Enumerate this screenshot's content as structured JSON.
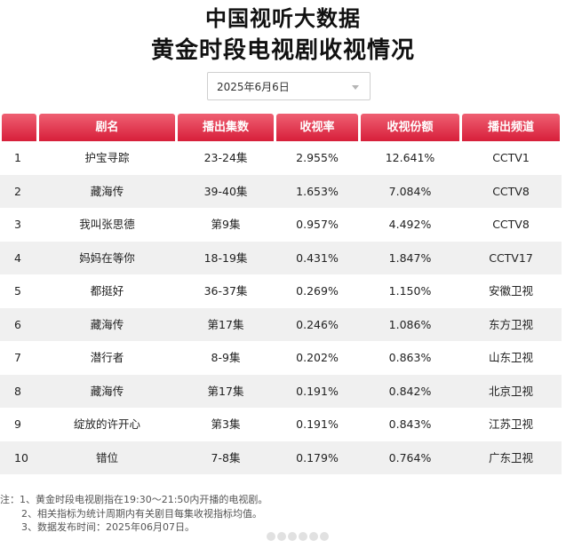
{
  "header": {
    "title_line1": "中国视听大数据",
    "title_line2": "黄金时段电视剧收视情况"
  },
  "date_picker": {
    "selected": "2025年6月6日"
  },
  "table": {
    "headers": [
      "剧名",
      "播出集数",
      "收视率",
      "收视份额",
      "播出频道"
    ],
    "rows": [
      {
        "rank": "1",
        "title": "护宝寻踪",
        "episodes": "23-24集",
        "rating": "2.955%",
        "share": "12.641%",
        "channel": "CCTV1"
      },
      {
        "rank": "2",
        "title": "藏海传",
        "episodes": "39-40集",
        "rating": "1.653%",
        "share": "7.084%",
        "channel": "CCTV8"
      },
      {
        "rank": "3",
        "title": "我叫张思德",
        "episodes": "第9集",
        "rating": "0.957%",
        "share": "4.492%",
        "channel": "CCTV8"
      },
      {
        "rank": "4",
        "title": "妈妈在等你",
        "episodes": "18-19集",
        "rating": "0.431%",
        "share": "1.847%",
        "channel": "CCTV17"
      },
      {
        "rank": "5",
        "title": "都挺好",
        "episodes": "36-37集",
        "rating": "0.269%",
        "share": "1.150%",
        "channel": "安徽卫视"
      },
      {
        "rank": "6",
        "title": "藏海传",
        "episodes": "第17集",
        "rating": "0.246%",
        "share": "1.086%",
        "channel": "东方卫视"
      },
      {
        "rank": "7",
        "title": "潜行者",
        "episodes": "8-9集",
        "rating": "0.202%",
        "share": "0.863%",
        "channel": "山东卫视"
      },
      {
        "rank": "8",
        "title": "藏海传",
        "episodes": "第17集",
        "rating": "0.191%",
        "share": "0.842%",
        "channel": "北京卫视"
      },
      {
        "rank": "9",
        "title": "绽放的许开心",
        "episodes": "第3集",
        "rating": "0.191%",
        "share": "0.843%",
        "channel": "江苏卫视"
      },
      {
        "rank": "10",
        "title": "错位",
        "episodes": "7-8集",
        "rating": "0.179%",
        "share": "0.764%",
        "channel": "广东卫视"
      }
    ]
  },
  "notes": {
    "line1": "注：1、黄金时段电视剧指在19:30～21:50内开播的电视剧。",
    "line2": "2、相关指标为统计周期内有关剧目每集收视指标均值。",
    "line3": "3、数据发布时间：2025年06月07日。"
  },
  "colors": {
    "header_gradient_top": "#ef5f72",
    "header_gradient_bottom": "#d71f3a",
    "alt_row": "#f0f0f0"
  }
}
